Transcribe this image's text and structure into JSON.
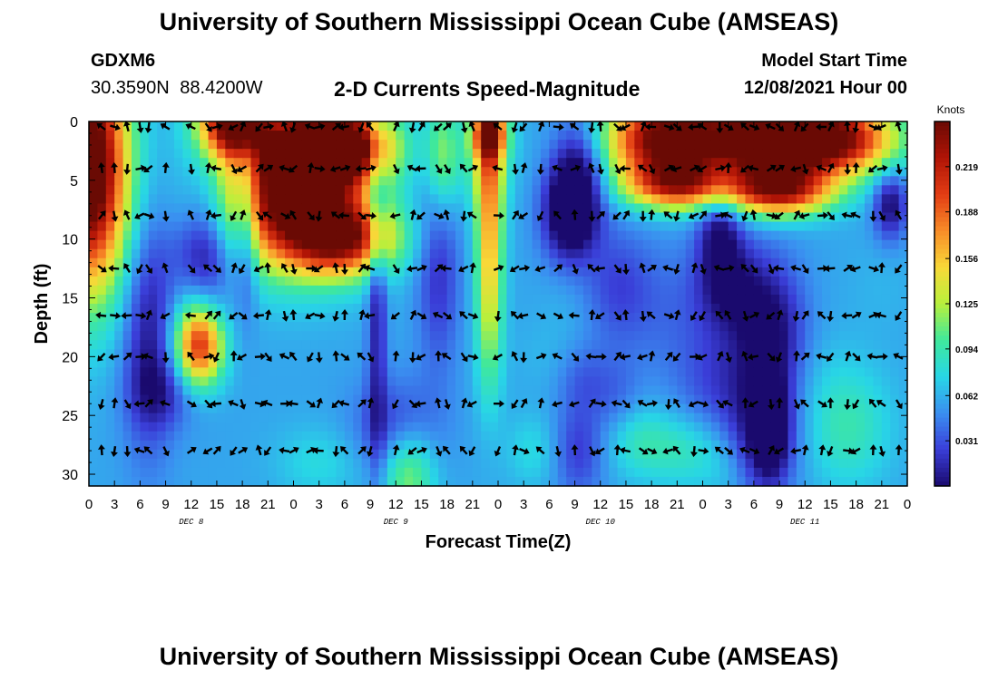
{
  "header": {
    "title": "University of Southern Mississippi Ocean Cube (AMSEAS)",
    "station": "GDXM6",
    "coords": "30.3590N  88.4200W",
    "subtitle": "2-D Currents Speed-Magnitude",
    "start_label": "Model Start Time",
    "start_value": "12/08/2021 Hour 00"
  },
  "footer": {
    "title": "University of Southern Mississippi Ocean Cube (AMSEAS)"
  },
  "chart_data": {
    "type": "heatmap",
    "title": "2-D Currents Speed-Magnitude",
    "xlabel": "Forecast Time(Z)",
    "ylabel": "Depth (ft)",
    "x_range_hours": [
      0,
      96
    ],
    "y_range_ft": [
      0,
      31
    ],
    "x_tick_labels": [
      "0",
      "3",
      "6",
      "9",
      "12",
      "15",
      "18",
      "21",
      "0",
      "3",
      "6",
      "9",
      "12",
      "15",
      "18",
      "21",
      "0",
      "3",
      "6",
      "9",
      "12",
      "15",
      "18",
      "21",
      "0",
      "3",
      "6",
      "9",
      "12",
      "15",
      "18",
      "21",
      "0"
    ],
    "day_labels": [
      {
        "text": "DEC 8",
        "hour": 12
      },
      {
        "text": "DEC 9",
        "hour": 36
      },
      {
        "text": "DEC 10",
        "hour": 60
      },
      {
        "text": "DEC 11",
        "hour": 84
      }
    ],
    "y_ticks": [
      0,
      5,
      10,
      15,
      20,
      25,
      30
    ],
    "colorbar": {
      "label": "Knots",
      "min": 0.0,
      "max": 0.25,
      "ticks": [
        "0.031",
        "0.062",
        "0.094",
        "0.125",
        "0.156",
        "0.188",
        "0.219"
      ],
      "tick_values": [
        0.031,
        0.062,
        0.094,
        0.125,
        0.156,
        0.188,
        0.219
      ],
      "colors": [
        "#1a0a6e",
        "#3a3ed8",
        "#3a8ff0",
        "#28d6e6",
        "#3fe89c",
        "#b8f03c",
        "#f8d838",
        "#f88c28",
        "#e23c14",
        "#b01406",
        "#6a0a04"
      ]
    },
    "arrow_depths_ft": [
      0,
      4,
      8,
      12.5,
      16.5,
      20,
      24,
      28
    ],
    "arrow_hours": [
      0,
      1.5,
      3,
      4.5,
      6,
      7,
      9,
      12,
      14,
      15,
      17,
      18,
      20,
      21,
      23,
      24,
      26,
      27,
      29,
      30,
      32,
      33,
      36,
      38,
      39,
      41,
      42,
      44,
      45,
      48,
      50,
      51,
      53,
      55,
      57,
      59,
      60,
      62,
      63,
      65,
      66,
      68,
      69,
      71,
      72,
      74,
      75,
      77,
      78,
      80,
      81,
      83,
      84,
      86,
      87,
      89,
      90,
      92,
      93,
      95,
      96
    ],
    "speed_notes": "speed field approximated from image; values in knots"
  }
}
